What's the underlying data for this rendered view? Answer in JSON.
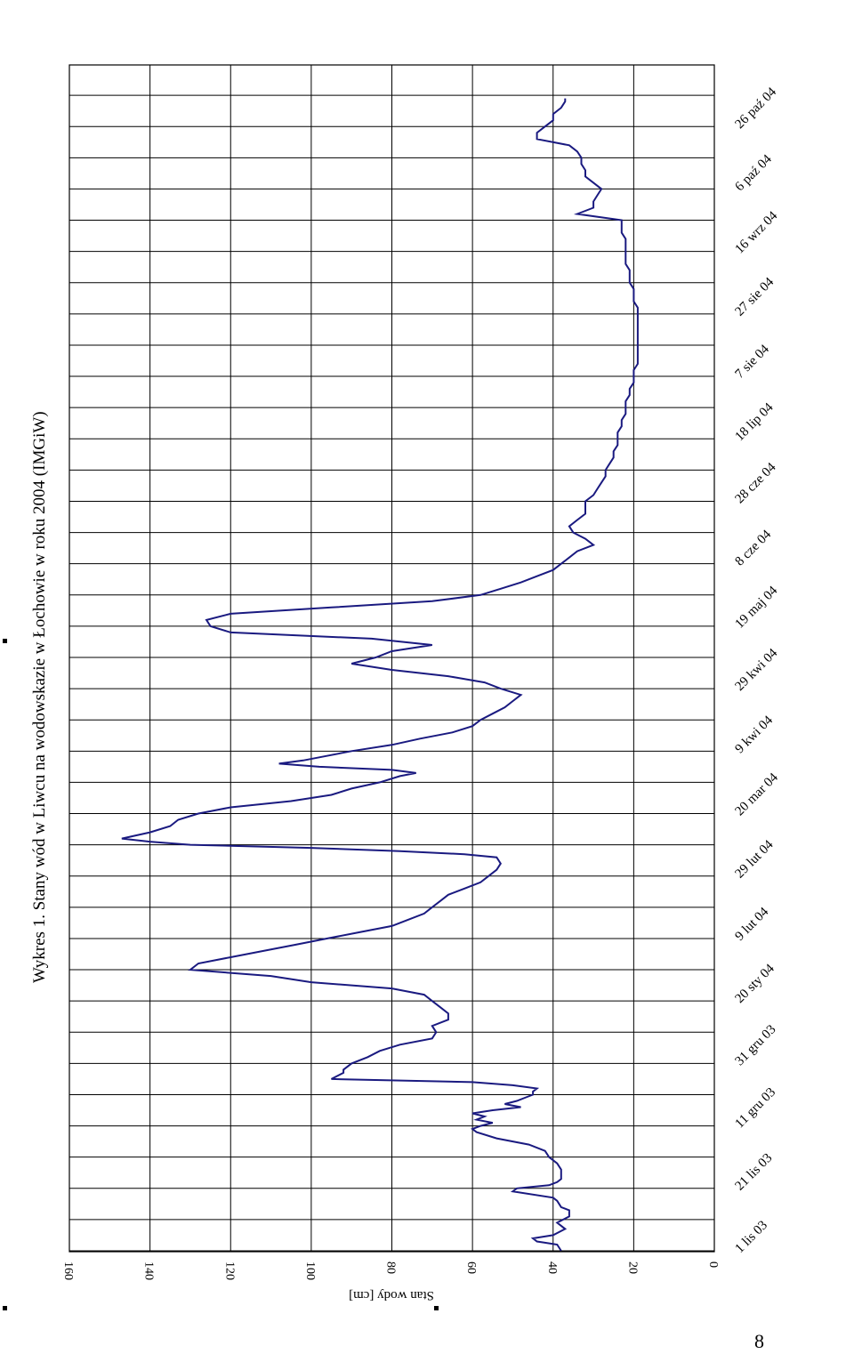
{
  "page_number": "8",
  "chart_data": {
    "type": "line",
    "title": "Wykres 1. Stany wód w Liwcu na wodowskazie w Łochowie w roku 2004 (IMGiW)",
    "ylabel": "Stan wody [cm]",
    "xlabel": "",
    "ylim": [
      0,
      160
    ],
    "yticks": [
      0,
      20,
      40,
      60,
      80,
      100,
      120,
      140,
      160
    ],
    "xticks": [
      "1 lis 03",
      "21 lis 03",
      "11 gru 03",
      "31 gru 03",
      "20 sty 04",
      "9 lut 04",
      "29 lut 04",
      "20 mar 04",
      "9 kwi 04",
      "29 kwi 04",
      "19 maj 04",
      "8 cze 04",
      "28 cze 04",
      "18 lip 04",
      "7 sie 04",
      "27 sie 04",
      "16 wrz 04",
      "6 paź 04",
      "26 paź 04"
    ],
    "grid": true,
    "line_color": "#1a1a80",
    "series": [
      {
        "x": [
          0,
          2,
          3,
          4,
          5,
          7,
          9,
          11,
          13,
          14,
          16,
          17,
          19,
          20,
          21,
          22,
          23,
          24,
          26,
          28,
          30,
          32,
          34,
          36,
          38,
          39,
          40,
          41,
          42,
          43,
          44,
          45,
          46,
          47,
          48,
          49,
          50,
          51,
          52,
          53,
          54,
          55,
          57,
          58,
          60,
          62,
          64,
          66,
          68,
          70,
          72,
          74,
          76,
          78,
          80,
          82,
          84,
          86,
          88,
          90,
          92,
          94,
          96,
          98,
          100,
          102,
          104,
          106,
          108,
          110,
          112,
          114,
          116,
          118,
          120,
          122,
          124,
          126,
          127,
          128,
          129,
          130,
          131,
          132,
          134,
          136,
          138,
          140,
          142,
          144,
          146,
          148,
          150,
          152,
          153,
          154,
          155,
          156,
          157,
          158,
          160,
          162,
          164,
          166,
          168,
          170,
          172,
          174,
          176,
          178,
          180,
          182,
          184,
          186,
          188,
          190,
          192,
          194,
          196,
          198,
          200,
          202,
          204,
          206,
          208,
          210,
          212,
          214,
          216,
          218,
          220,
          222,
          224,
          226,
          228,
          230,
          232,
          234,
          236,
          238,
          240,
          242,
          244,
          246,
          248,
          250,
          252,
          254,
          256,
          258,
          260,
          262,
          264,
          266,
          268,
          270,
          272,
          274,
          276,
          278,
          280,
          282,
          284,
          286,
          288,
          290,
          292,
          294,
          296,
          298,
          300,
          302,
          304,
          306,
          308,
          310,
          312,
          314,
          316,
          318,
          320,
          322,
          324,
          326,
          328,
          330,
          332,
          334,
          336,
          338,
          340,
          342,
          344,
          346,
          348,
          350,
          352,
          354,
          356,
          358,
          360,
          362,
          364,
          366,
          368,
          369
        ],
        "y": [
          38,
          39,
          44,
          45,
          40,
          37,
          39,
          36,
          36,
          38,
          39,
          40,
          50,
          49,
          41,
          39,
          38,
          38,
          38,
          39,
          41,
          42,
          46,
          54,
          59,
          60,
          58,
          55,
          59,
          57,
          60,
          55,
          48,
          52,
          49,
          47,
          45,
          45,
          44,
          50,
          60,
          95,
          92,
          92,
          90,
          86,
          83,
          78,
          70,
          69,
          70,
          66,
          66,
          68,
          70,
          72,
          80,
          100,
          110,
          130,
          128,
          120,
          112,
          104,
          96,
          88,
          80,
          76,
          72,
          70,
          68,
          66,
          62,
          58,
          56,
          54,
          53,
          54,
          62,
          78,
          100,
          130,
          140,
          147,
          140,
          135,
          133,
          128,
          120,
          105,
          95,
          90,
          83,
          78,
          74,
          80,
          98,
          108,
          102,
          98,
          90,
          80,
          73,
          65,
          60,
          58,
          55,
          52,
          50,
          48,
          53,
          57,
          66,
          80,
          90,
          84,
          80,
          70,
          85,
          120,
          125,
          126,
          120,
          95,
          70,
          58,
          53,
          48,
          44,
          40,
          38,
          36,
          34,
          30,
          32,
          35,
          36,
          34,
          32,
          32,
          32,
          30,
          29,
          28,
          27,
          27,
          26,
          25,
          25,
          24,
          24,
          24,
          23,
          23,
          22,
          22,
          22,
          21,
          21,
          20,
          20,
          20,
          19,
          19,
          19,
          19,
          19,
          19,
          19,
          19,
          19,
          19,
          20,
          20,
          20,
          21,
          21,
          21,
          22,
          22,
          22,
          22,
          22,
          23,
          23,
          23,
          34,
          30,
          30,
          29,
          28,
          30,
          32,
          32,
          33,
          33,
          34,
          36,
          44,
          44,
          42,
          40,
          40,
          38,
          37,
          37
        ]
      }
    ]
  }
}
